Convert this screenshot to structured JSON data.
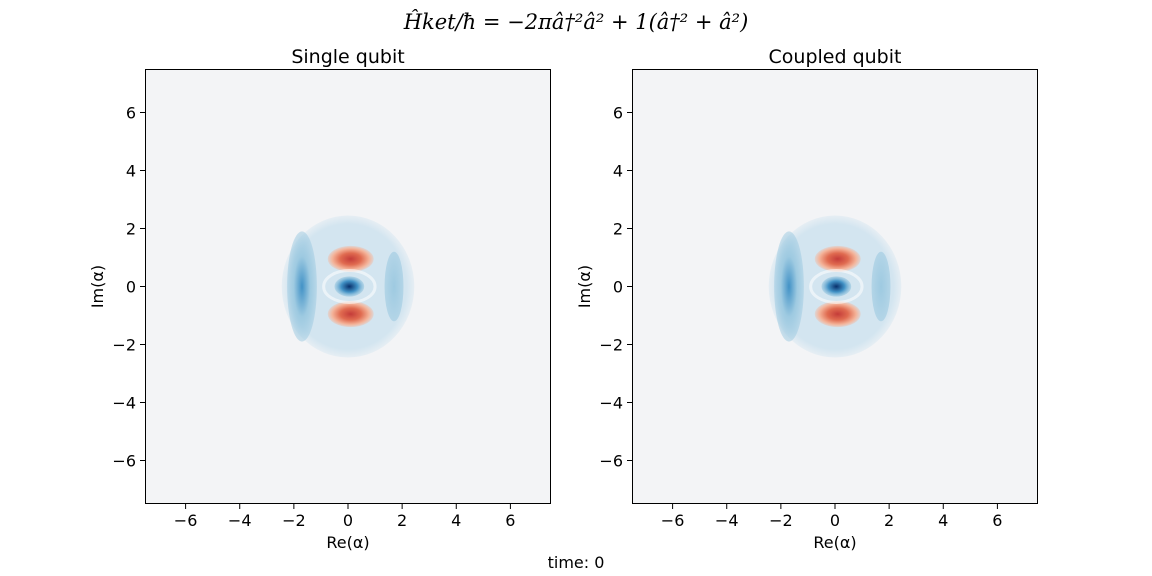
{
  "figure": {
    "suptitle": "Ĥket/ħ = −2πâ†²â² + 1(â†² + â²)",
    "footer": "time: 0"
  },
  "colors": {
    "background_field": "#f3f4f6",
    "blue_light": "#d3e5f0",
    "blue_mid": "#9ecae1",
    "blue_dark": "#4292c6",
    "blue_core": "#08306b",
    "red_light": "#f4b49a",
    "red_mid": "#e06b50",
    "red_dark": "#c43c39"
  },
  "chart_data": [
    {
      "type": "heatmap",
      "title": "Single qubit",
      "xlabel": "Re(α)",
      "ylabel": "Im(α)",
      "xlim": [
        -7.5,
        7.5
      ],
      "ylim": [
        -7.5,
        7.5
      ],
      "xticks": [
        -6,
        -4,
        -2,
        0,
        2,
        4,
        6
      ],
      "yticks": [
        -6,
        -4,
        -2,
        0,
        2,
        4,
        6
      ],
      "xtick_labels": [
        "−6",
        "−4",
        "−2",
        "0",
        "2",
        "4",
        "6"
      ],
      "ytick_labels": [
        "−6",
        "−4",
        "−2",
        "0",
        "2",
        "4",
        "6"
      ],
      "grid": false,
      "colormap": "RdBu",
      "features": [
        {
          "kind": "halo",
          "cx": 0,
          "cy": 0,
          "r": 2.45,
          "sign": "negative",
          "strength": 0.15
        },
        {
          "kind": "crescent-left",
          "cx": -1.7,
          "cy": 0,
          "rx": 0.55,
          "ry": 1.9,
          "sign": "negative",
          "strength": 0.6
        },
        {
          "kind": "crescent-right",
          "cx": 1.7,
          "cy": 0,
          "rx": 0.35,
          "ry": 1.2,
          "sign": "negative",
          "strength": 0.3
        },
        {
          "kind": "lobe-top",
          "cx": 0.1,
          "cy": 0.95,
          "rx": 0.85,
          "ry": 0.45,
          "sign": "positive",
          "strength": 0.7
        },
        {
          "kind": "lobe-bottom",
          "cx": 0.1,
          "cy": -0.95,
          "rx": 0.85,
          "ry": 0.45,
          "sign": "positive",
          "strength": 0.7
        },
        {
          "kind": "core",
          "cx": 0.05,
          "cy": 0,
          "rx": 0.55,
          "ry": 0.35,
          "sign": "negative",
          "strength": 1.0
        }
      ]
    },
    {
      "type": "heatmap",
      "title": "Coupled qubit",
      "xlabel": "Re(α)",
      "ylabel": "Im(α)",
      "xlim": [
        -7.5,
        7.5
      ],
      "ylim": [
        -7.5,
        7.5
      ],
      "xticks": [
        -6,
        -4,
        -2,
        0,
        2,
        4,
        6
      ],
      "yticks": [
        -6,
        -4,
        -2,
        0,
        2,
        4,
        6
      ],
      "xtick_labels": [
        "−6",
        "−4",
        "−2",
        "0",
        "2",
        "4",
        "6"
      ],
      "ytick_labels": [
        "−6",
        "−4",
        "−2",
        "0",
        "2",
        "4",
        "6"
      ],
      "grid": false,
      "colormap": "RdBu",
      "features": [
        {
          "kind": "halo",
          "cx": 0,
          "cy": 0,
          "r": 2.45,
          "sign": "negative",
          "strength": 0.15
        },
        {
          "kind": "crescent-left",
          "cx": -1.7,
          "cy": 0,
          "rx": 0.55,
          "ry": 1.9,
          "sign": "negative",
          "strength": 0.6
        },
        {
          "kind": "crescent-right",
          "cx": 1.7,
          "cy": 0,
          "rx": 0.35,
          "ry": 1.2,
          "sign": "negative",
          "strength": 0.3
        },
        {
          "kind": "lobe-top",
          "cx": 0.1,
          "cy": 0.95,
          "rx": 0.85,
          "ry": 0.45,
          "sign": "positive",
          "strength": 0.7
        },
        {
          "kind": "lobe-bottom",
          "cx": 0.1,
          "cy": -0.95,
          "rx": 0.85,
          "ry": 0.45,
          "sign": "positive",
          "strength": 0.7
        },
        {
          "kind": "core",
          "cx": 0.05,
          "cy": 0,
          "rx": 0.55,
          "ry": 0.35,
          "sign": "negative",
          "strength": 1.0
        }
      ]
    }
  ]
}
